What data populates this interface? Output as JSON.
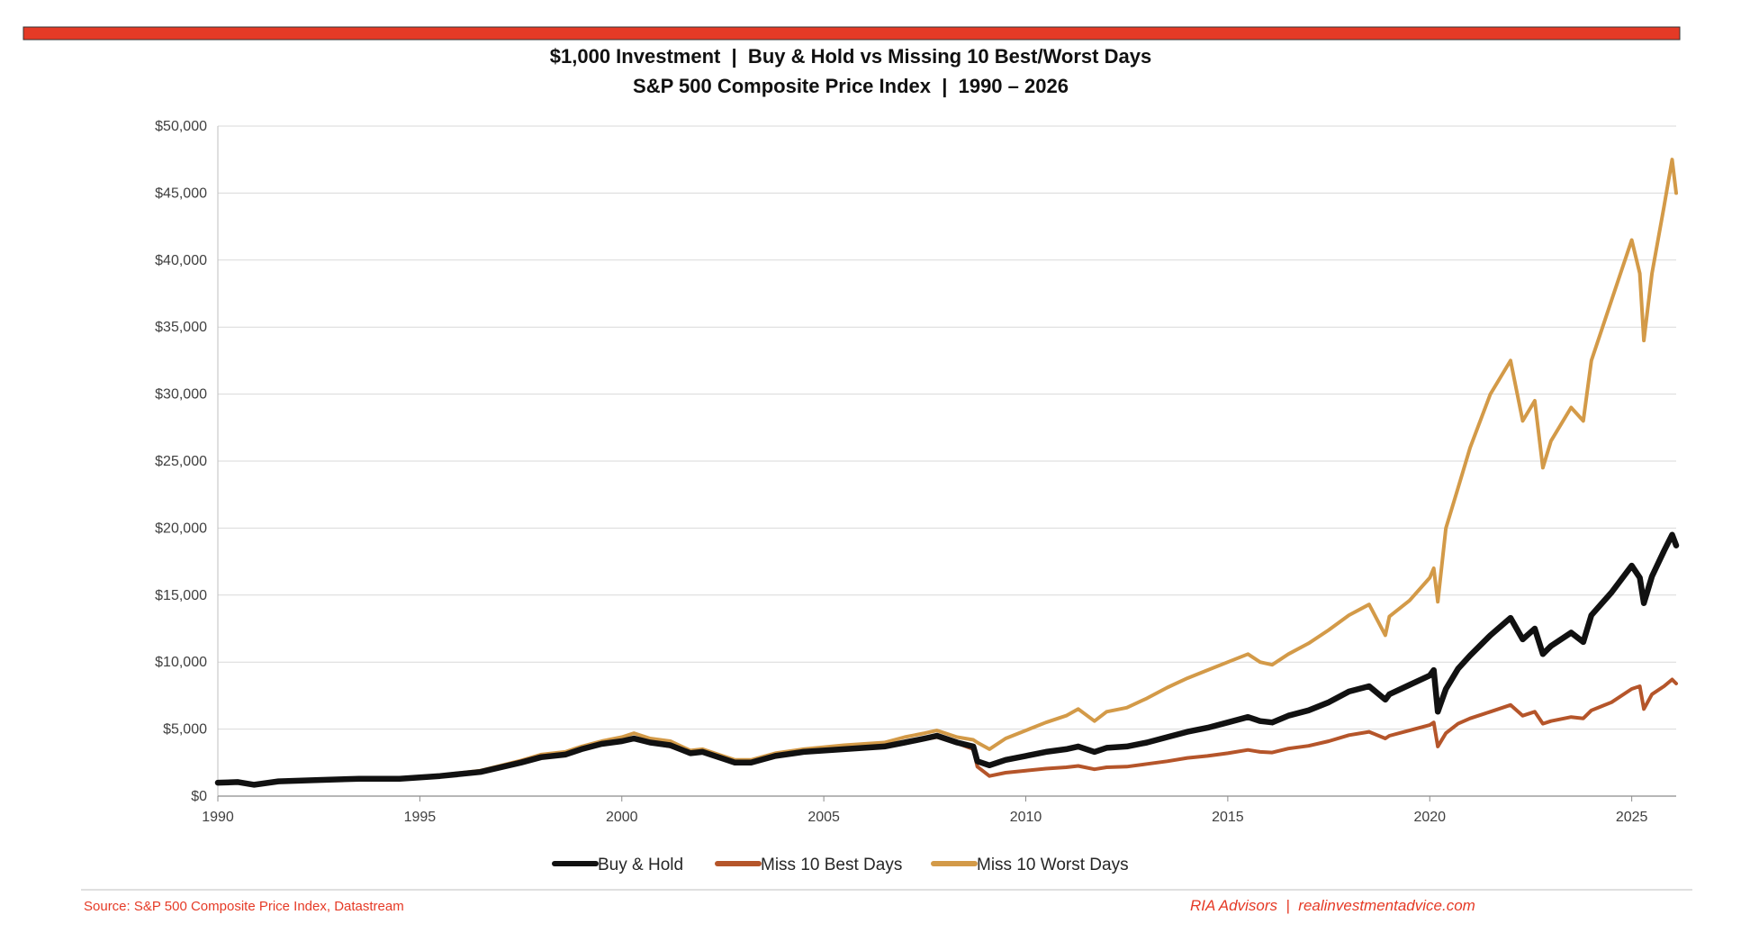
{
  "colors": {
    "top_bar": "#e53a26",
    "buy_hold": "#111111",
    "miss_best": "#b5552a",
    "miss_worst": "#d39a48",
    "footer_text": "#e53a26"
  },
  "chart_data": {
    "type": "line",
    "title": "$1,000 Investment  |  Buy & Hold vs Missing 10 Best/Worst Days",
    "subtitle": "S&P 500 Composite Price Index  |  1990 – 2026",
    "xlabel": "",
    "ylabel": "",
    "xlim": [
      1990,
      2026.1
    ],
    "ylim": [
      0,
      50000
    ],
    "x_ticks": [
      1990,
      1995,
      2000,
      2005,
      2010,
      2015,
      2020,
      2025
    ],
    "y_ticks": [
      0,
      5000,
      10000,
      15000,
      20000,
      25000,
      30000,
      35000,
      40000,
      45000,
      50000
    ],
    "y_tick_labels": [
      "$0",
      "$5,000",
      "$10,000",
      "$15,000",
      "$20,000",
      "$25,000",
      "$30,000",
      "$35,000",
      "$40,000",
      "$45,000",
      "$50,000"
    ],
    "grid": "horizontal",
    "legend_position": "bottom",
    "series": [
      {
        "name": "Buy & Hold",
        "color": "#111111",
        "x": [
          1990.0,
          1990.5,
          1990.9,
          1991.5,
          1992.5,
          1993.5,
          1994.5,
          1995.5,
          1996.5,
          1997.5,
          1998.0,
          1998.6,
          1999.0,
          1999.5,
          2000.0,
          2000.3,
          2000.7,
          2001.2,
          2001.7,
          2002.0,
          2002.5,
          2002.8,
          2003.2,
          2003.8,
          2004.5,
          2005.5,
          2006.5,
          2007.0,
          2007.5,
          2007.8,
          2008.3,
          2008.7,
          2008.8,
          2009.1,
          2009.5,
          2010.0,
          2010.5,
          2011.0,
          2011.3,
          2011.7,
          2012.0,
          2012.5,
          2013.0,
          2013.5,
          2014.0,
          2014.5,
          2015.0,
          2015.5,
          2015.8,
          2016.1,
          2016.5,
          2017.0,
          2017.5,
          2018.0,
          2018.5,
          2018.9,
          2019.0,
          2019.5,
          2020.0,
          2020.1,
          2020.2,
          2020.4,
          2020.7,
          2021.0,
          2021.5,
          2022.0,
          2022.3,
          2022.6,
          2022.8,
          2023.0,
          2023.5,
          2023.8,
          2024.0,
          2024.5,
          2025.0,
          2025.2,
          2025.3,
          2025.5,
          2025.8,
          2026.0,
          2026.1
        ],
        "values": [
          1000,
          1050,
          850,
          1100,
          1200,
          1300,
          1300,
          1500,
          1800,
          2500,
          2900,
          3100,
          3500,
          3900,
          4100,
          4300,
          4000,
          3800,
          3200,
          3300,
          2800,
          2500,
          2500,
          3000,
          3300,
          3500,
          3700,
          4000,
          4300,
          4500,
          4000,
          3700,
          2600,
          2300,
          2700,
          3000,
          3300,
          3500,
          3700,
          3300,
          3600,
          3700,
          4000,
          4400,
          4800,
          5100,
          5500,
          5900,
          5600,
          5500,
          6000,
          6400,
          7000,
          7800,
          8200,
          7200,
          7600,
          8300,
          9000,
          9400,
          6300,
          8000,
          9500,
          10500,
          12000,
          13300,
          11700,
          12500,
          10600,
          11200,
          12200,
          11500,
          13500,
          15200,
          17200,
          16300,
          14400,
          16400,
          18300,
          19500,
          18700
        ]
      },
      {
        "name": "Miss 10 Best Days",
        "color": "#b5552a",
        "x": [
          1990.0,
          1990.5,
          1990.9,
          1991.5,
          1992.5,
          1993.5,
          1994.5,
          1995.5,
          1996.5,
          1997.5,
          1998.0,
          1998.6,
          1999.0,
          1999.5,
          2000.0,
          2000.3,
          2000.7,
          2001.2,
          2001.7,
          2002.0,
          2002.5,
          2002.8,
          2003.2,
          2003.8,
          2004.5,
          2005.5,
          2006.5,
          2007.0,
          2007.5,
          2007.8,
          2008.3,
          2008.7,
          2008.8,
          2009.1,
          2009.5,
          2010.0,
          2010.5,
          2011.0,
          2011.3,
          2011.7,
          2012.0,
          2012.5,
          2013.0,
          2013.5,
          2014.0,
          2014.5,
          2015.0,
          2015.5,
          2015.8,
          2016.1,
          2016.5,
          2017.0,
          2017.5,
          2018.0,
          2018.5,
          2018.9,
          2019.0,
          2019.5,
          2020.0,
          2020.1,
          2020.2,
          2020.4,
          2020.7,
          2021.0,
          2021.5,
          2022.0,
          2022.3,
          2022.6,
          2022.8,
          2023.0,
          2023.5,
          2023.8,
          2024.0,
          2024.5,
          2025.0,
          2025.2,
          2025.3,
          2025.5,
          2025.8,
          2026.0,
          2026.1
        ],
        "values": [
          1000,
          1050,
          870,
          1100,
          1200,
          1300,
          1300,
          1500,
          1850,
          2600,
          3000,
          3150,
          3550,
          3950,
          4100,
          4250,
          3950,
          3700,
          3150,
          3250,
          2800,
          2550,
          2550,
          3000,
          3300,
          3450,
          3650,
          3950,
          4250,
          4400,
          3950,
          3500,
          2200,
          1500,
          1750,
          1900,
          2050,
          2150,
          2250,
          2000,
          2150,
          2200,
          2400,
          2600,
          2850,
          3000,
          3200,
          3450,
          3300,
          3250,
          3550,
          3750,
          4100,
          4550,
          4800,
          4300,
          4500,
          4900,
          5300,
          5500,
          3700,
          4700,
          5400,
          5800,
          6300,
          6800,
          6000,
          6300,
          5400,
          5600,
          5900,
          5800,
          6400,
          7000,
          8000,
          8200,
          6500,
          7600,
          8200,
          8700,
          8400
        ]
      },
      {
        "name": "Miss 10 Worst Days",
        "color": "#d39a48",
        "x": [
          1990.0,
          1990.5,
          1990.9,
          1991.5,
          1992.5,
          1993.5,
          1994.5,
          1995.5,
          1996.5,
          1997.5,
          1998.0,
          1998.6,
          1999.0,
          1999.5,
          2000.0,
          2000.3,
          2000.7,
          2001.2,
          2001.7,
          2002.0,
          2002.5,
          2002.8,
          2003.2,
          2003.8,
          2004.5,
          2005.5,
          2006.5,
          2007.0,
          2007.5,
          2007.8,
          2008.3,
          2008.7,
          2008.8,
          2009.1,
          2009.5,
          2010.0,
          2010.5,
          2011.0,
          2011.3,
          2011.7,
          2012.0,
          2012.5,
          2013.0,
          2013.5,
          2014.0,
          2014.5,
          2015.0,
          2015.5,
          2015.8,
          2016.1,
          2016.5,
          2017.0,
          2017.5,
          2018.0,
          2018.5,
          2018.9,
          2019.0,
          2019.5,
          2020.0,
          2020.1,
          2020.2,
          2020.4,
          2020.7,
          2021.0,
          2021.5,
          2022.0,
          2022.3,
          2022.6,
          2022.8,
          2023.0,
          2023.5,
          2023.8,
          2024.0,
          2024.5,
          2025.0,
          2025.2,
          2025.3,
          2025.5,
          2025.8,
          2026.0,
          2026.1
        ],
        "values": [
          1000,
          1080,
          900,
          1150,
          1250,
          1350,
          1350,
          1550,
          1900,
          2650,
          3100,
          3300,
          3700,
          4100,
          4400,
          4700,
          4300,
          4100,
          3400,
          3500,
          3000,
          2700,
          2700,
          3200,
          3500,
          3800,
          4000,
          4400,
          4700,
          4900,
          4400,
          4200,
          4000,
          3500,
          4300,
          4900,
          5500,
          6000,
          6500,
          5600,
          6300,
          6600,
          7300,
          8100,
          8800,
          9400,
          10000,
          10600,
          10000,
          9800,
          10600,
          11400,
          12400,
          13500,
          14300,
          12000,
          13400,
          14600,
          16300,
          17000,
          14500,
          20000,
          23000,
          26000,
          30000,
          32500,
          28000,
          29500,
          24500,
          26500,
          29000,
          28000,
          32500,
          37000,
          41500,
          39000,
          34000,
          39000,
          44000,
          47500,
          45000
        ]
      }
    ]
  },
  "footer": {
    "source": "Source: S&P 500 Composite Price Index, Datastream",
    "brand": "RIA Advisors  |  realinvestmentadvice.com"
  }
}
